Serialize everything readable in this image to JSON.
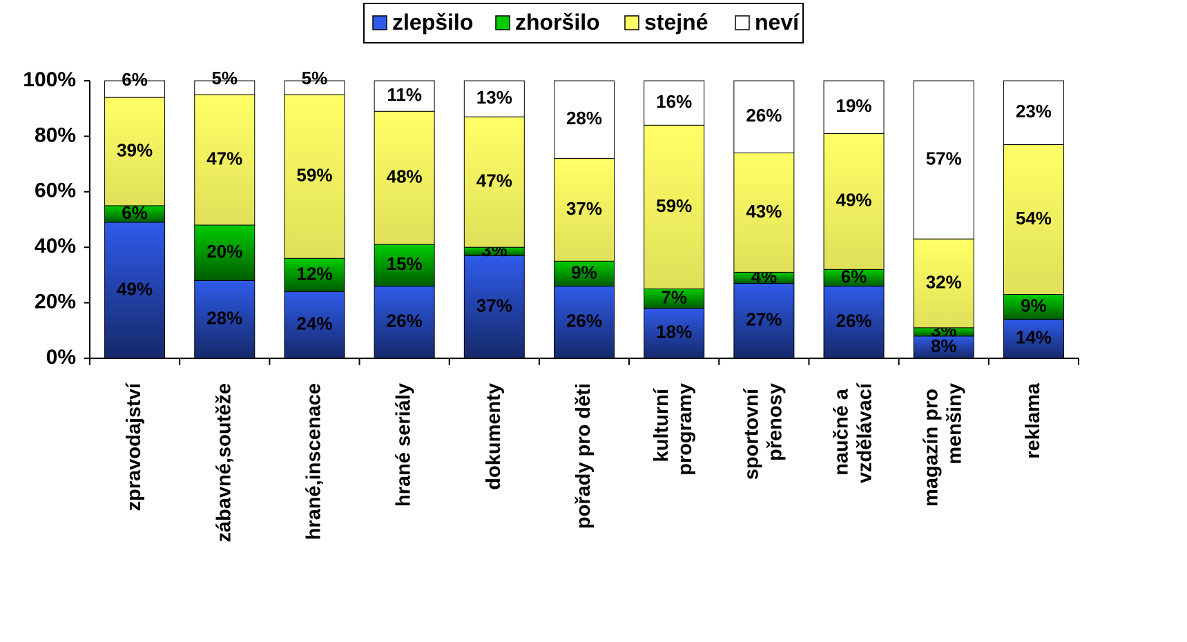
{
  "chart_data": {
    "type": "stacked_bar",
    "categories": [
      "zpravodajství",
      "zábavné,soutěže",
      "hrané,inscenace",
      "hrané seriály",
      "dokumenty",
      "pořady pro děti",
      "kulturní programy",
      "sportovní přenosy",
      "naučné a vzdělávací",
      "magazín pro menšiny",
      "reklama"
    ],
    "series": [
      {
        "name": "zlepšilo",
        "color": "#2f5bea",
        "values": [
          49,
          28,
          24,
          26,
          37,
          26,
          18,
          27,
          26,
          8,
          14
        ],
        "value_labels": [
          "49%",
          "28%",
          "24%",
          "26%",
          "37%",
          "26%",
          "18%",
          "27%",
          "26%",
          "8%",
          "14%"
        ]
      },
      {
        "name": "zhoršilo",
        "color": "#00cc00",
        "values": [
          6,
          20,
          12,
          15,
          3,
          9,
          7,
          4,
          6,
          3,
          9
        ],
        "value_labels": [
          "6%",
          "20%",
          "12%",
          "15%",
          "3%",
          "9%",
          "7%",
          "4%",
          "6%",
          "3%",
          "9%"
        ]
      },
      {
        "name": "stejné",
        "color": "#ffff66",
        "values": [
          39,
          47,
          59,
          48,
          47,
          37,
          59,
          43,
          49,
          32,
          54
        ],
        "value_labels": [
          "39%",
          "47%",
          "59%",
          "48%",
          "47%",
          "37%",
          "59%",
          "43%",
          "49%",
          "32%",
          "54%"
        ]
      },
      {
        "name": "neví",
        "color": "#ffffff",
        "values": [
          6,
          5,
          5,
          11,
          13,
          28,
          16,
          26,
          19,
          57,
          23
        ],
        "value_labels": [
          "6%",
          "5%",
          "5%",
          "11%",
          "13%",
          "28%",
          "16%",
          "26%",
          "19%",
          "57%",
          "23%"
        ]
      }
    ],
    "ylim": [
      0,
      100
    ],
    "yticks": [
      {
        "value": 0,
        "label": "0%"
      },
      {
        "value": 20,
        "label": "20%"
      },
      {
        "value": 40,
        "label": "40%"
      },
      {
        "value": 60,
        "label": "60%"
      },
      {
        "value": 80,
        "label": "80%"
      },
      {
        "value": 100,
        "label": "100%"
      }
    ],
    "legend": "top"
  }
}
